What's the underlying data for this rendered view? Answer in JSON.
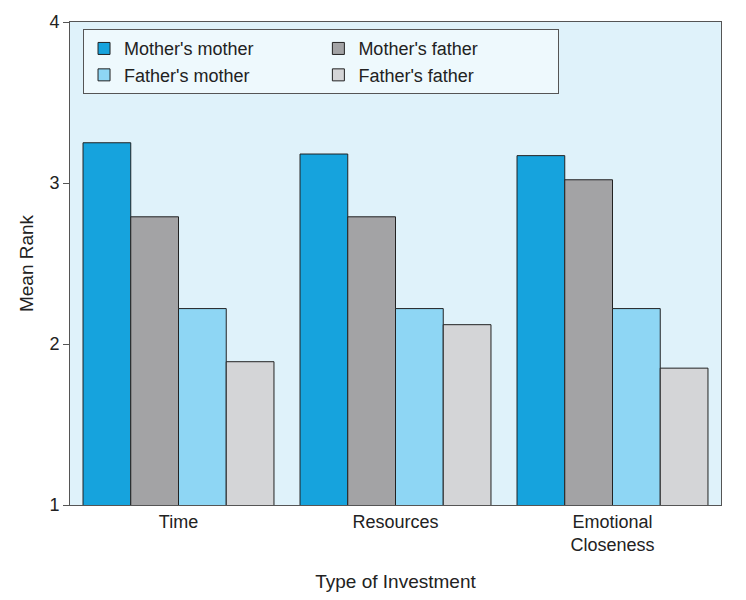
{
  "chart_data": {
    "type": "bar",
    "x_label": "Type of Investment",
    "y_label": "Mean Rank",
    "categories": [
      "Time",
      "Resources",
      "Emotional Closeness"
    ],
    "series": [
      {
        "name": "Mother's mother",
        "color": "#16a3dd",
        "values": [
          3.25,
          3.18,
          3.17
        ]
      },
      {
        "name": "Mother's father",
        "color": "#a3a3a5",
        "values": [
          2.79,
          2.79,
          3.02
        ]
      },
      {
        "name": "Father's mother",
        "color": "#8ed6f4",
        "values": [
          2.22,
          2.22,
          2.22
        ]
      },
      {
        "name": "Father's father",
        "color": "#d4d5d7",
        "values": [
          1.89,
          2.12,
          1.85
        ]
      }
    ],
    "ylim": [
      1,
      4
    ],
    "yticks": [
      1,
      2,
      3,
      4
    ],
    "grid": false,
    "legend": "upper left"
  }
}
